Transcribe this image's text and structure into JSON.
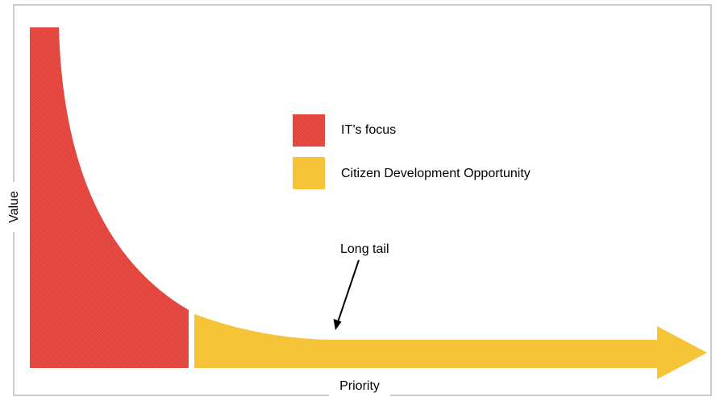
{
  "diagram": {
    "x_axis_label": "Priority",
    "y_axis_label": "Value",
    "legend": [
      {
        "label": "IT’s focus",
        "color": "#e2423a"
      },
      {
        "label": "Citizen Development Opportunity",
        "color": "#f5c232"
      }
    ],
    "annotation": "Long tail",
    "colors": {
      "head": "#e2423a",
      "tail": "#f5c232",
      "frame": "#999999",
      "arrow": "#000000"
    }
  }
}
